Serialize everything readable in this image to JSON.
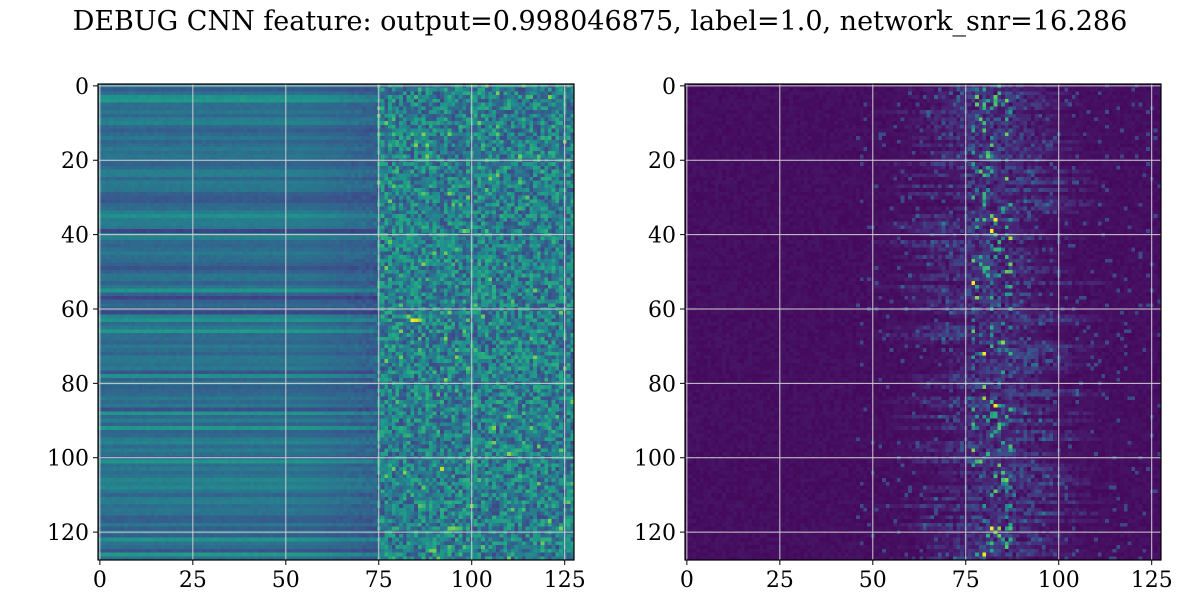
{
  "figure": {
    "title": "DEBUG CNN feature: output=0.998046875, label=1.0, network_snr=16.286"
  },
  "chart_data": [
    {
      "type": "heatmap",
      "panel": "left",
      "shape": [
        128,
        128
      ],
      "xlim": [
        -0.5,
        127.5
      ],
      "ylim": [
        127.5,
        -0.5
      ],
      "xticks": [
        0,
        25,
        50,
        75,
        100,
        125
      ],
      "yticks": [
        0,
        20,
        40,
        60,
        80,
        100,
        120
      ],
      "grid": true,
      "colormap": "viridis",
      "xlabel": "",
      "ylabel": "",
      "description_of_pattern": "horizontal banding for columns 0-75 (per-row constant values), noisy high-variance texture for columns 75-127, brightest pixel near row 63 col 85"
    },
    {
      "type": "heatmap",
      "panel": "right",
      "shape": [
        128,
        128
      ],
      "xlim": [
        -0.5,
        127.5
      ],
      "ylim": [
        127.5,
        -0.5
      ],
      "xticks": [
        0,
        25,
        50,
        75,
        100,
        125
      ],
      "yticks": [
        0,
        20,
        40,
        60,
        80,
        100,
        120
      ],
      "grid": true,
      "colormap": "viridis",
      "xlabel": "",
      "ylabel": "",
      "description_of_pattern": "mostly dark purple background, sparse activations concentrated in columns 50-110, strongest along column ~80-85"
    }
  ],
  "colors": {
    "grid": "#cfcfcf",
    "axes": "#000000",
    "viridis_low": "#440154",
    "viridis_high": "#fde725"
  }
}
